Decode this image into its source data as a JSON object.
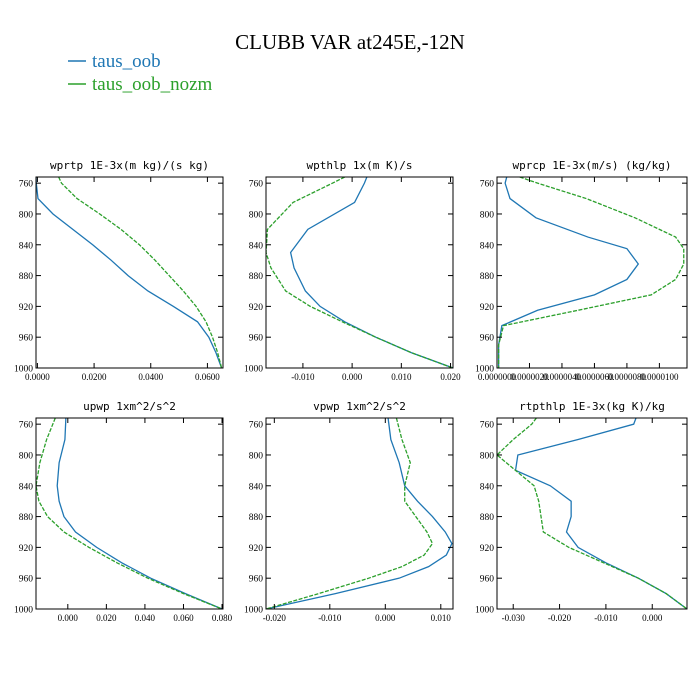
{
  "title": "CLUBB VAR at245E,-12N",
  "legend": [
    {
      "name": "taus_oob",
      "color": "#1f77b4",
      "dash": false
    },
    {
      "name": "taus_oob_nozm",
      "color": "#2ca02c",
      "dash": true
    }
  ],
  "chart_data": [
    {
      "type": "line",
      "title": "wprtp  1E-3x(m kg)/(s kg)",
      "xlim": [
        -0.0005,
        0.0655
      ],
      "ylim": [
        1000,
        752
      ],
      "y_inverted": true,
      "xticks": [
        0.0,
        0.02,
        0.04,
        0.06
      ],
      "xtick_labels": [
        "0.0000",
        "0.0200",
        "0.0400",
        "0.0600"
      ],
      "yticks": [
        760,
        800,
        840,
        880,
        920,
        960,
        1000
      ],
      "y": [
        752,
        760,
        780,
        800,
        820,
        840,
        860,
        880,
        900,
        920,
        940,
        960,
        980,
        1000
      ],
      "series": [
        {
          "name": "taus_oob",
          "x": [
            -0.0005,
            -0.0004,
            0.0002,
            0.0055,
            0.0125,
            0.0195,
            0.026,
            0.032,
            0.039,
            0.048,
            0.0565,
            0.0605,
            0.063,
            0.065
          ]
        },
        {
          "name": "taus_oob_nozm",
          "x": [
            0.0075,
            0.0085,
            0.014,
            0.022,
            0.0295,
            0.036,
            0.0415,
            0.0465,
            0.0515,
            0.056,
            0.0595,
            0.0618,
            0.0636,
            0.065
          ]
        }
      ]
    },
    {
      "type": "line",
      "title": "wpthlp  1x(m K)/s",
      "xlim": [
        -0.0175,
        0.0205
      ],
      "ylim": [
        1000,
        752
      ],
      "y_inverted": true,
      "xticks": [
        -0.01,
        0.0,
        0.01,
        0.02
      ],
      "xtick_labels": [
        "-0.010",
        "0.000",
        "0.010",
        "0.020"
      ],
      "yticks": [
        760,
        800,
        840,
        880,
        920,
        960,
        1000
      ],
      "y": [
        752,
        760,
        785,
        820,
        850,
        870,
        900,
        920,
        940,
        960,
        980,
        1000
      ],
      "series": [
        {
          "name": "taus_oob",
          "x": [
            0.003,
            0.0025,
            0.0005,
            -0.009,
            -0.0125,
            -0.0118,
            -0.0095,
            -0.0065,
            -0.0015,
            0.0048,
            0.012,
            0.0205
          ]
        },
        {
          "name": "taus_oob_nozm",
          "x": [
            -0.0015,
            -0.004,
            -0.012,
            -0.0172,
            -0.0175,
            -0.0165,
            -0.0135,
            -0.0085,
            -0.002,
            0.0048,
            0.012,
            0.0205
          ]
        }
      ]
    },
    {
      "type": "line",
      "title": "wprcp  1E-3x(m/s) (kg/kg)",
      "xlim": [
        0.0,
        1.17e-05
      ],
      "ylim": [
        1000,
        752
      ],
      "y_inverted": true,
      "xticks": [
        0.0,
        2e-06,
        4e-06,
        6e-06,
        8e-06,
        1e-05
      ],
      "xtick_labels": [
        "0.0000000",
        "0.0000020",
        "0.0000040",
        "0.0000060",
        "0.0000080",
        "0.0000100"
      ],
      "yticks": [
        760,
        800,
        840,
        880,
        920,
        960,
        1000
      ],
      "y": [
        752,
        760,
        780,
        805,
        830,
        845,
        865,
        885,
        905,
        925,
        945,
        970,
        1000
      ],
      "series": [
        {
          "name": "taus_oob",
          "x": [
            6e-07,
            5e-07,
            8e-07,
            2.4e-06,
            5.6e-06,
            8e-06,
            8.7e-06,
            8e-06,
            6e-06,
            2.5e-06,
            3e-07,
            1e-07,
            1e-07
          ]
        },
        {
          "name": "taus_oob_nozm",
          "x": [
            1.4e-06,
            2.5e-06,
            5.5e-06,
            8.5e-06,
            1.1e-05,
            1.15e-05,
            1.15e-05,
            1.1e-05,
            9.5e-06,
            5e-06,
            4e-07,
            1e-07,
            1e-07
          ]
        }
      ]
    },
    {
      "type": "line",
      "title": "upwp  1xm^2/s^2",
      "xlim": [
        -0.0165,
        0.0805
      ],
      "ylim": [
        1000,
        752
      ],
      "y_inverted": true,
      "xticks": [
        0.0,
        0.02,
        0.04,
        0.06,
        0.08
      ],
      "xtick_labels": [
        "0.000",
        "0.020",
        "0.040",
        "0.060",
        "0.080"
      ],
      "yticks": [
        760,
        800,
        840,
        880,
        920,
        960,
        1000
      ],
      "y": [
        752,
        780,
        810,
        840,
        860,
        880,
        900,
        920,
        940,
        960,
        980,
        1000
      ],
      "series": [
        {
          "name": "taus_oob",
          "x": [
            -0.001,
            -0.0015,
            -0.0045,
            -0.0055,
            -0.0045,
            -0.002,
            0.004,
            0.015,
            0.028,
            0.043,
            0.061,
            0.08
          ]
        },
        {
          "name": "taus_oob_nozm",
          "x": [
            -0.0065,
            -0.011,
            -0.0145,
            -0.0165,
            -0.015,
            -0.0105,
            -0.002,
            0.011,
            0.0255,
            0.0415,
            0.06,
            0.08
          ]
        }
      ]
    },
    {
      "type": "line",
      "title": "vpwp  1xm^2/s^2",
      "xlim": [
        -0.0215,
        0.0122
      ],
      "ylim": [
        1000,
        752
      ],
      "y_inverted": true,
      "xticks": [
        -0.02,
        -0.01,
        0.0,
        0.01
      ],
      "xtick_labels": [
        "-0.020",
        "-0.010",
        "0.000",
        "0.010"
      ],
      "yticks": [
        760,
        800,
        840,
        880,
        920,
        960,
        1000
      ],
      "y": [
        752,
        780,
        810,
        840,
        860,
        880,
        900,
        915,
        930,
        945,
        960,
        980,
        1000
      ],
      "series": [
        {
          "name": "taus_oob",
          "x": [
            0.0005,
            0.001,
            0.0025,
            0.0035,
            0.0058,
            0.0085,
            0.0108,
            0.012,
            0.011,
            0.0078,
            0.0025,
            -0.009,
            -0.0215
          ]
        },
        {
          "name": "taus_oob_nozm",
          "x": [
            0.002,
            0.003,
            0.0045,
            0.0035,
            0.0035,
            0.0055,
            0.0075,
            0.0085,
            0.007,
            0.003,
            -0.003,
            -0.012,
            -0.0215
          ]
        }
      ]
    },
    {
      "type": "line",
      "title": "rtpthlp  1E-3x(kg K)/kg",
      "xlim": [
        -0.0335,
        0.0075
      ],
      "ylim": [
        1000,
        752
      ],
      "y_inverted": true,
      "xticks": [
        -0.03,
        -0.02,
        -0.01,
        0.0
      ],
      "xtick_labels": [
        "-0.030",
        "-0.020",
        "-0.010",
        "0.000"
      ],
      "yticks": [
        760,
        800,
        840,
        880,
        920,
        960,
        1000
      ],
      "y": [
        752,
        760,
        780,
        800,
        820,
        840,
        860,
        880,
        900,
        920,
        940,
        960,
        980,
        1000
      ],
      "series": [
        {
          "name": "taus_oob",
          "x": [
            -0.0035,
            -0.004,
            -0.016,
            -0.029,
            -0.0295,
            -0.022,
            -0.0175,
            -0.0175,
            -0.0185,
            -0.016,
            -0.01,
            -0.003,
            0.003,
            0.0075
          ]
        },
        {
          "name": "taus_oob_nozm",
          "x": [
            -0.025,
            -0.026,
            -0.03,
            -0.0335,
            -0.0295,
            -0.0255,
            -0.0245,
            -0.024,
            -0.0235,
            -0.018,
            -0.0105,
            -0.003,
            0.003,
            0.0075
          ]
        }
      ]
    }
  ]
}
